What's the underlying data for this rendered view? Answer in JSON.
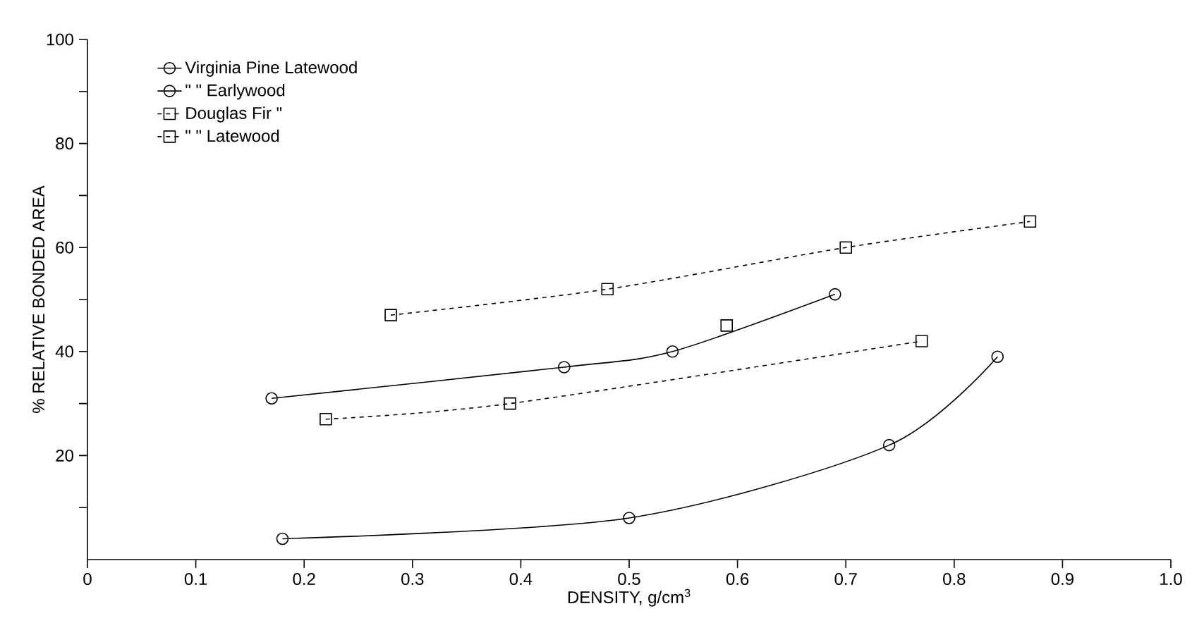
{
  "chart_data": {
    "type": "line",
    "xlabel": "DENSITY, g/cm$^{3}$",
    "ylabel": "% RELATIVE BONDED AREA",
    "xlim": [
      0,
      1.0
    ],
    "ylim": [
      0,
      100
    ],
    "xticks": [
      0,
      0.1,
      0.2,
      0.3,
      0.4,
      0.5,
      0.6,
      0.7,
      0.8,
      0.9,
      {
        "value": 1.0,
        "label": "1.0"
      }
    ],
    "yticks": [
      {
        "value": 10,
        "label": null
      },
      20,
      {
        "value": 30,
        "label": null
      },
      40,
      {
        "value": 50,
        "label": null
      },
      60,
      {
        "value": 70,
        "label": null
      },
      80,
      {
        "value": 90,
        "label": null
      },
      100
    ],
    "grid": false,
    "legend": "top left",
    "series": [
      {
        "name": "Virginia Pine Latewood",
        "color": "#000000",
        "marker": "circle",
        "line_style": "solid",
        "x": [
          0.18,
          0.5,
          0.74,
          0.84
        ],
        "values": [
          4,
          8,
          22,
          39
        ]
      },
      {
        "name": "\"  \" Earlywood",
        "color": "#000000",
        "marker": "circle",
        "line_style": "solid",
        "x": [
          0.17,
          0.44,
          0.54,
          0.69
        ],
        "values": [
          31,
          37,
          40,
          51
        ]
      },
      {
        "name": "Douglas Fir \"",
        "color": "#000000",
        "marker": "square",
        "line_style": "dashed",
        "x": [
          0.28,
          0.48,
          0.7,
          0.87
        ],
        "values": [
          47,
          52,
          60,
          65
        ]
      },
      {
        "name": "\"  \" Latewood",
        "color": "#000000",
        "marker": "square",
        "line_style": "dashed",
        "x": [
          0.22,
          0.39,
          0.77
        ],
        "values": [
          27,
          30,
          42
        ]
      },
      {
        "type": "scatter",
        "color": "#000000",
        "marker": "square",
        "x": [
          0.59
        ],
        "values": [
          45
        ]
      }
    ]
  }
}
